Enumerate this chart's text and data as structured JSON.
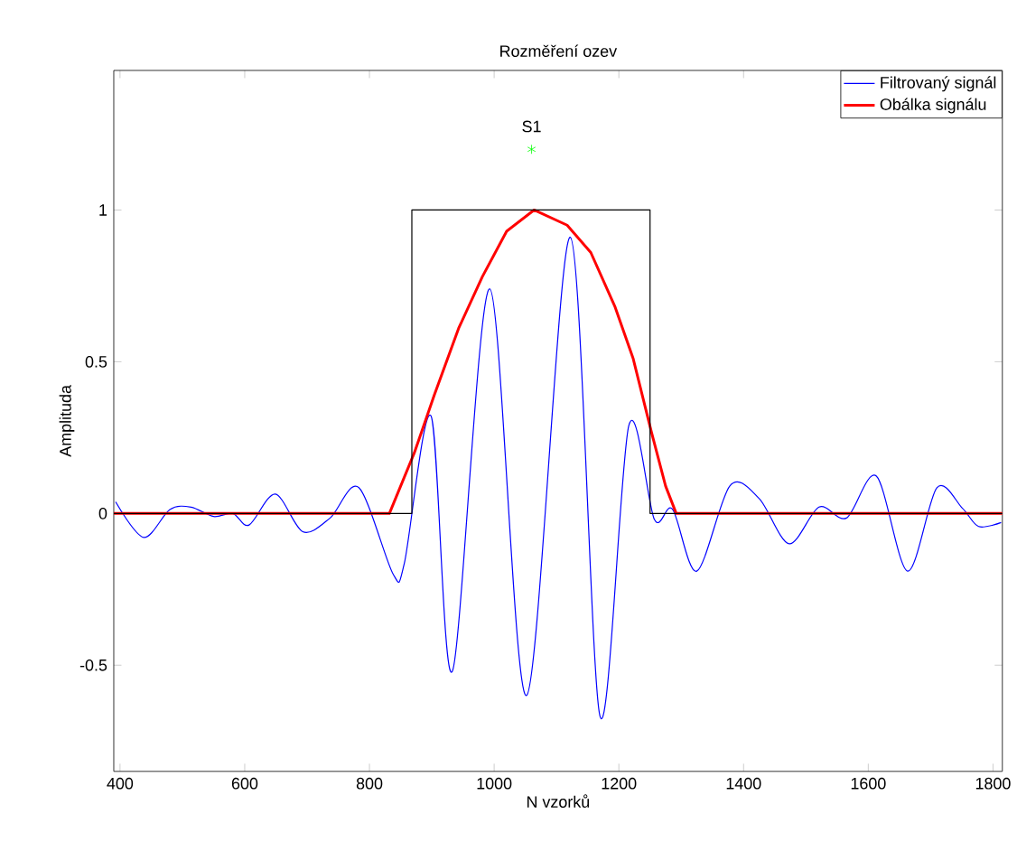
{
  "chart_data": {
    "type": "line",
    "title": "Rozměření ozev",
    "xlabel": "N vzorků",
    "ylabel": "Amplituda",
    "xlim": [
      390,
      1815
    ],
    "ylim": [
      -0.85,
      1.46
    ],
    "xticks": [
      400,
      600,
      800,
      1000,
      1200,
      1400,
      1600,
      1800
    ],
    "yticks": [
      -0.5,
      0,
      0.5,
      1
    ],
    "grid": false,
    "legend": "top right",
    "series": [
      {
        "name": "Filtrovaný signál",
        "color": "#0000ff",
        "x": [
          393,
          438,
          480,
          514,
          550,
          581,
          607,
          649,
          693,
          737,
          783,
          838,
          856,
          899,
          933,
          993,
          1052,
          1122,
          1170,
          1216,
          1257,
          1286,
          1325,
          1378,
          1425,
          1473,
          1521,
          1565,
          1613,
          1663,
          1710,
          1751,
          1777,
          1813
        ],
        "values": [
          0.038,
          -0.079,
          0.013,
          0.021,
          -0.01,
          0,
          -0.038,
          0.064,
          -0.06,
          -0.015,
          0.085,
          -0.2,
          -0.164,
          0.32,
          -0.52,
          0.74,
          -0.6,
          0.91,
          -0.67,
          0.29,
          -0.02,
          0.014,
          -0.19,
          0.091,
          0.049,
          -0.1,
          0.021,
          -0.015,
          0.123,
          -0.19,
          0.085,
          0.017,
          -0.043,
          -0.03
        ]
      },
      {
        "name": "Obálka signálu",
        "color": "#ff0000",
        "x": [
          390,
          832,
          872,
          904,
          943,
          981,
          1020,
          1064,
          1117,
          1155,
          1194,
          1223,
          1252,
          1275,
          1292,
          1815
        ],
        "values": [
          0,
          0,
          0.2,
          0.39,
          0.61,
          0.78,
          0.93,
          1.0,
          0.95,
          0.86,
          0.68,
          0.51,
          0.27,
          0.09,
          0,
          0
        ]
      },
      {
        "color": "#000000",
        "x": [
          390,
          868,
          868,
          1250,
          1250,
          1815
        ],
        "values": [
          0,
          0,
          1,
          1,
          0,
          0
        ]
      },
      {
        "type": "scatter",
        "marker": "cross",
        "color": "#00ff00",
        "x": [
          1060
        ],
        "values": [
          1.2
        ]
      }
    ],
    "annotations": [
      {
        "text": "S1",
        "x": 1060,
        "y": 1.2
      }
    ]
  }
}
